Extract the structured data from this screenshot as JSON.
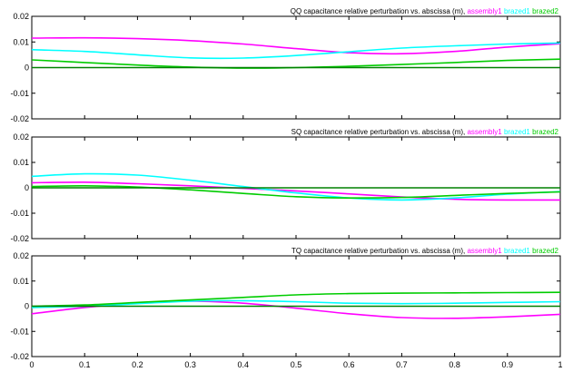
{
  "chart_data": [
    {
      "type": "line",
      "title_prefix": "QQ capacitance relative perturbation vs. abscissa (m),",
      "xlim": [
        0,
        1
      ],
      "ylim": [
        -0.02,
        0.02
      ],
      "yticks": [
        "0.02",
        "0.01",
        "0",
        "-0.01",
        "-0.02"
      ],
      "legend": "top-right",
      "series": [
        {
          "name": "assembly1",
          "color": "#ff00ff",
          "x": [
            0,
            0.1,
            0.2,
            0.3,
            0.4,
            0.5,
            0.6,
            0.7,
            0.8,
            0.9,
            1.0
          ],
          "y": [
            0.0115,
            0.0116,
            0.0113,
            0.0105,
            0.0092,
            0.0074,
            0.0058,
            0.0054,
            0.0063,
            0.008,
            0.0093
          ]
        },
        {
          "name": "brazed1",
          "color": "#00ffff",
          "x": [
            0,
            0.1,
            0.2,
            0.3,
            0.4,
            0.5,
            0.6,
            0.7,
            0.8,
            0.9,
            1.0
          ],
          "y": [
            0.007,
            0.0063,
            0.005,
            0.0038,
            0.0037,
            0.0047,
            0.0062,
            0.0076,
            0.0085,
            0.0092,
            0.0096
          ]
        },
        {
          "name": "brazed2",
          "color": "#00cc00",
          "x": [
            0,
            0.1,
            0.2,
            0.3,
            0.4,
            0.5,
            0.6,
            0.7,
            0.8,
            0.9,
            1.0
          ],
          "y": [
            0.003,
            0.002,
            0.001,
            0.0002,
            -0.0002,
            0.0,
            0.0005,
            0.0012,
            0.002,
            0.0028,
            0.0033
          ]
        },
        {
          "name": "",
          "color": "#008000",
          "x": [
            0,
            1
          ],
          "y": [
            0,
            0
          ]
        }
      ]
    },
    {
      "type": "line",
      "title_prefix": "SQ capacitance relative perturbation vs. abscissa (m),",
      "xlim": [
        0,
        1
      ],
      "ylim": [
        -0.02,
        0.02
      ],
      "yticks": [
        "0.02",
        "0.01",
        "0",
        "-0.01",
        "-0.02"
      ],
      "legend": "top-right",
      "series": [
        {
          "name": "assembly1",
          "color": "#ff00ff",
          "x": [
            0,
            0.1,
            0.2,
            0.3,
            0.4,
            0.5,
            0.6,
            0.7,
            0.8,
            0.9,
            1.0
          ],
          "y": [
            0.002,
            0.0022,
            0.0016,
            0.0008,
            -0.0002,
            -0.0012,
            -0.0024,
            -0.0036,
            -0.0045,
            -0.0048,
            -0.0048
          ]
        },
        {
          "name": "brazed1",
          "color": "#00ffff",
          "x": [
            0,
            0.1,
            0.2,
            0.3,
            0.4,
            0.5,
            0.6,
            0.7,
            0.8,
            0.9,
            1.0
          ],
          "y": [
            0.0045,
            0.0055,
            0.005,
            0.003,
            0.0005,
            -0.002,
            -0.004,
            -0.0048,
            -0.004,
            -0.0025,
            -0.0015
          ]
        },
        {
          "name": "brazed2",
          "color": "#00cc00",
          "x": [
            0,
            0.1,
            0.2,
            0.3,
            0.4,
            0.5,
            0.6,
            0.7,
            0.8,
            0.9,
            1.0
          ],
          "y": [
            0.0005,
            0.0008,
            0.0003,
            -0.0008,
            -0.0022,
            -0.0035,
            -0.004,
            -0.0038,
            -0.003,
            -0.0022,
            -0.0016
          ]
        },
        {
          "name": "",
          "color": "#008000",
          "x": [
            0,
            1
          ],
          "y": [
            0,
            0
          ]
        }
      ]
    },
    {
      "type": "line",
      "title_prefix": "TQ capacitance relative perturbation vs. abscissa (m),",
      "xlim": [
        0,
        1
      ],
      "ylim": [
        -0.02,
        0.02
      ],
      "yticks": [
        "0.02",
        "0.01",
        "0",
        "-0.01",
        "-0.02"
      ],
      "xticks": [
        "0",
        "0.1",
        "0.2",
        "0.3",
        "0.4",
        "0.5",
        "0.6",
        "0.7",
        "0.8",
        "0.9",
        "1"
      ],
      "legend": "top-right",
      "series": [
        {
          "name": "assembly1",
          "color": "#ff00ff",
          "x": [
            0,
            0.1,
            0.2,
            0.3,
            0.4,
            0.5,
            0.6,
            0.7,
            0.8,
            0.9,
            1.0
          ],
          "y": [
            -0.003,
            -0.0005,
            0.0012,
            0.002,
            0.0012,
            -0.0008,
            -0.003,
            -0.0045,
            -0.0048,
            -0.0042,
            -0.0032
          ]
        },
        {
          "name": "brazed1",
          "color": "#00ffff",
          "x": [
            0,
            0.1,
            0.2,
            0.3,
            0.4,
            0.5,
            0.6,
            0.7,
            0.8,
            0.9,
            1.0
          ],
          "y": [
            -0.0005,
            0.0,
            0.001,
            0.002,
            0.0022,
            0.0018,
            0.0012,
            0.001,
            0.0012,
            0.0015,
            0.0018
          ]
        },
        {
          "name": "brazed2",
          "color": "#00cc00",
          "x": [
            0,
            0.1,
            0.2,
            0.3,
            0.4,
            0.5,
            0.6,
            0.7,
            0.8,
            0.9,
            1.0
          ],
          "y": [
            0.0,
            0.0005,
            0.0015,
            0.0025,
            0.0035,
            0.0045,
            0.005,
            0.0052,
            0.0053,
            0.0054,
            0.0055
          ]
        },
        {
          "name": "",
          "color": "#008000",
          "x": [
            0,
            1
          ],
          "y": [
            0,
            0
          ]
        }
      ]
    }
  ]
}
